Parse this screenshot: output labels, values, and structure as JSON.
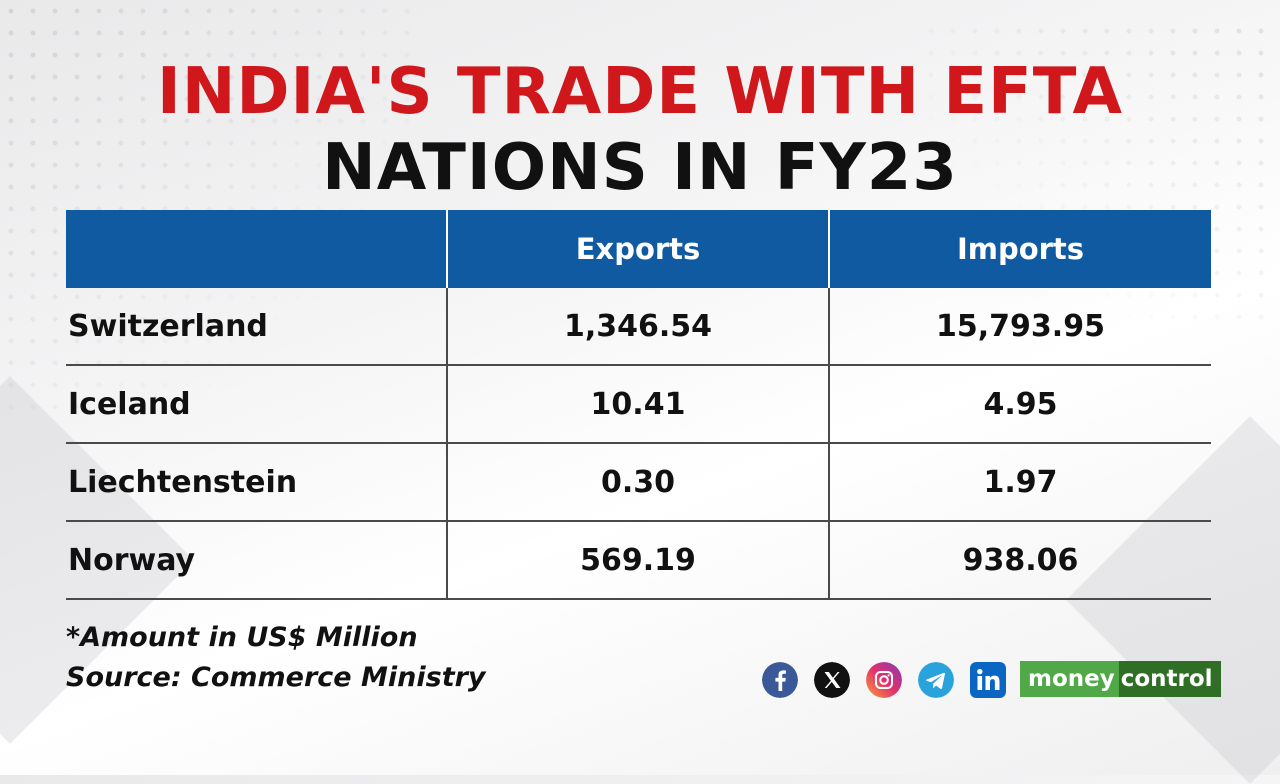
{
  "title": {
    "line1": "INDIA'S TRADE WITH EFTA",
    "line2": "NATIONS IN FY23"
  },
  "chart_data": {
    "type": "table",
    "columns": [
      "",
      "Exports",
      "Imports"
    ],
    "rows": [
      {
        "country": "Switzerland",
        "exports": "1,346.54",
        "imports": "15,793.95"
      },
      {
        "country": "Iceland",
        "exports": "10.41",
        "imports": "4.95"
      },
      {
        "country": "Liechtenstein",
        "exports": "0.30",
        "imports": "1.97"
      },
      {
        "country": "Norway",
        "exports": "569.19",
        "imports": "938.06"
      }
    ]
  },
  "notes": {
    "unit": "*Amount in US$ Million",
    "source": "Source: Commerce Ministry"
  },
  "socials": [
    {
      "icon": "facebook-icon",
      "color": "#3b5998"
    },
    {
      "icon": "x-icon",
      "color": "#111111"
    },
    {
      "icon": "instagram-icon",
      "color": "#e1306c"
    },
    {
      "icon": "telegram-icon",
      "color": "#2aa3dd"
    },
    {
      "icon": "linkedin-icon",
      "color": "#0a66c2"
    }
  ],
  "logo": {
    "part1": "money",
    "part2": "control"
  },
  "colors": {
    "title_red": "#d0171c",
    "header_blue": "#0f5aa0",
    "logo_green_light": "#51a847",
    "logo_green_dark": "#2f6f25"
  }
}
